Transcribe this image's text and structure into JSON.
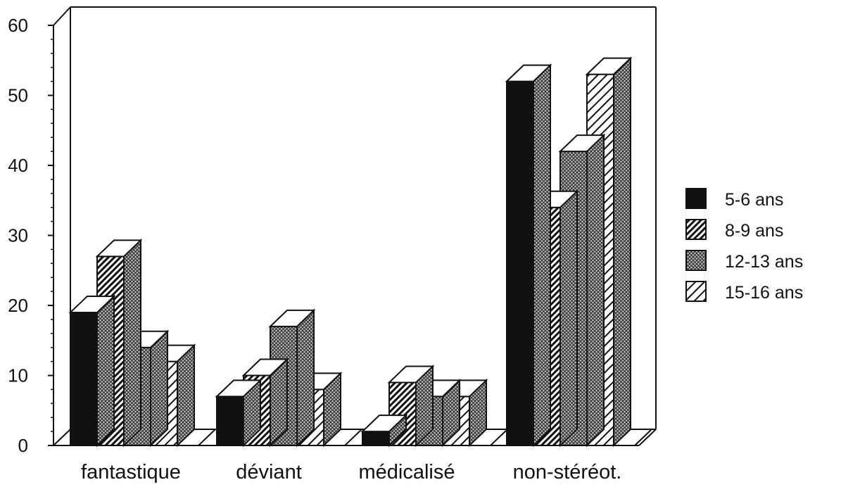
{
  "chart_data": {
    "type": "bar",
    "three_d": true,
    "categories": [
      "fantastique",
      "déviant",
      "médicalisé",
      "non-stéréot."
    ],
    "series": [
      {
        "name": "5-6 ans",
        "pattern": "solid",
        "values": [
          19,
          7,
          2,
          52
        ]
      },
      {
        "name": "8-9 ans",
        "pattern": "diagonal-dense",
        "values": [
          27,
          10,
          9,
          34
        ]
      },
      {
        "name": "12-13 ans",
        "pattern": "crosshatch",
        "values": [
          14,
          17,
          7,
          42
        ]
      },
      {
        "name": "15-16 ans",
        "pattern": "diagonal-light",
        "values": [
          12,
          8,
          7,
          53
        ]
      }
    ],
    "yticks": [
      "0",
      "10",
      "20",
      "30",
      "40",
      "50",
      "60"
    ],
    "ylim": [
      0,
      60
    ],
    "grid": false,
    "legend_position": "right",
    "colors": {
      "ink": "#111111",
      "background": "#ffffff"
    }
  }
}
